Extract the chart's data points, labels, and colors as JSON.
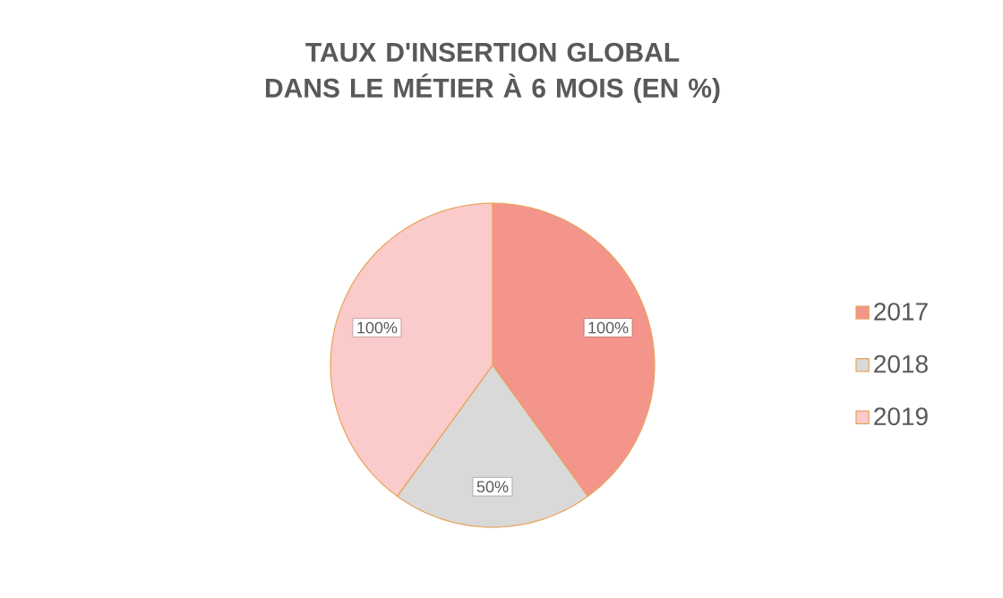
{
  "chart_data": {
    "type": "pie",
    "title": "TAUX D'INSERTION GLOBAL DANS LE MÉTIER À 6 MOIS (EN %)",
    "categories": [
      "2017",
      "2018",
      "2019"
    ],
    "values": [
      100,
      50,
      100
    ],
    "value_labels": [
      "100%",
      "50%",
      "100%"
    ],
    "colors": [
      "#f4958b",
      "#d9d9d9",
      "#fbcaca"
    ],
    "legend": "right"
  }
}
